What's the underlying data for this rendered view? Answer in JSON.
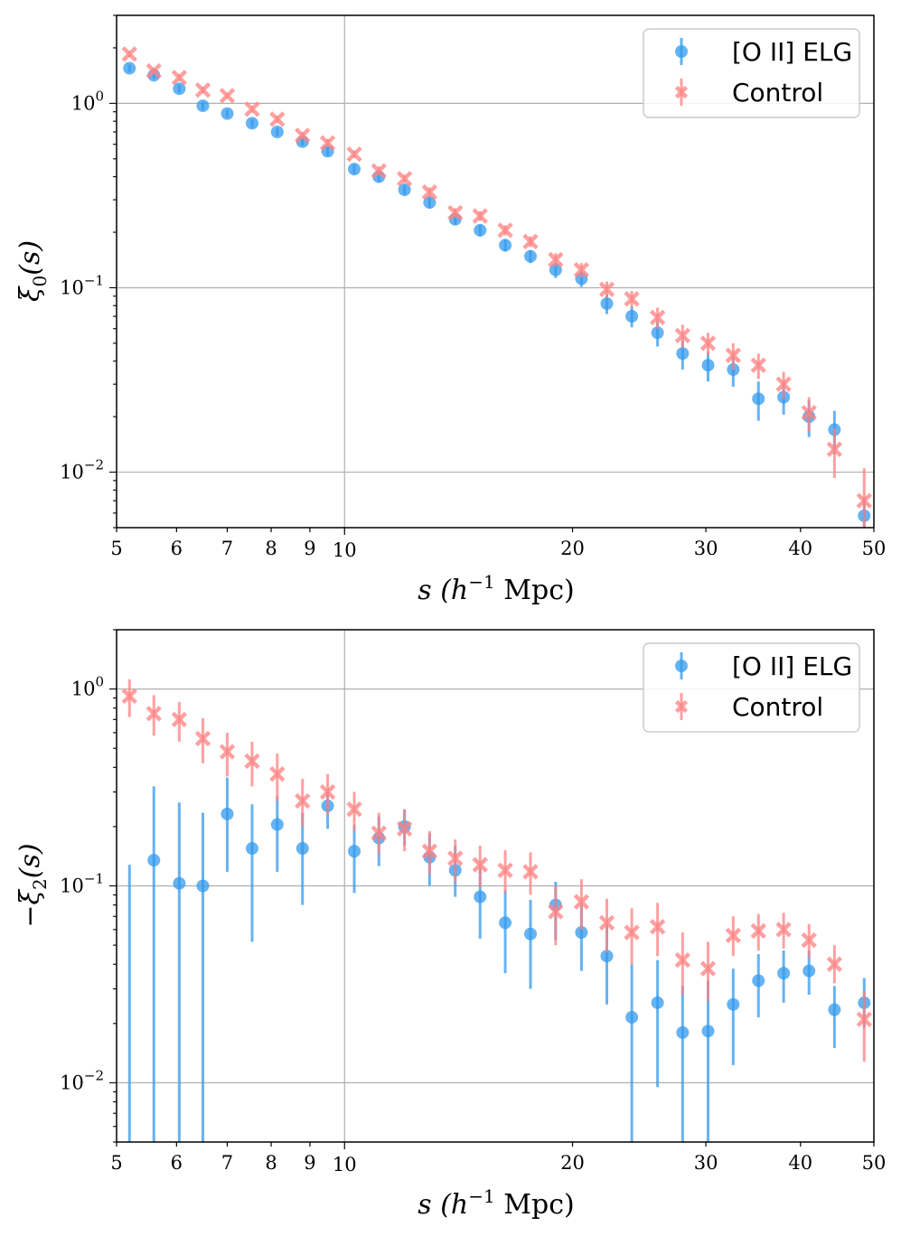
{
  "chart_data": [
    {
      "type": "scatter",
      "name": "xi0",
      "ylabel": "ξ0(s)",
      "xlabel": "s (h−1 Mpc)",
      "xscale": "log",
      "yscale": "log",
      "xlim": [
        5,
        50
      ],
      "ylim": [
        0.005,
        3.0
      ],
      "grid_major_x": [
        10
      ],
      "grid_major_y": [
        0.01,
        0.1,
        1.0
      ],
      "x_ticks": [
        5,
        6,
        7,
        8,
        9,
        10,
        20,
        30,
        40,
        50
      ],
      "x_tick_labels": [
        "5",
        "6",
        "7",
        "8",
        "9",
        "10",
        "20",
        "30",
        "40",
        "50"
      ],
      "y_ticks": [
        0.01,
        0.1,
        1.0
      ],
      "y_tick_labels": [
        {
          "base": "10",
          "exp": "−2"
        },
        {
          "base": "10",
          "exp": "−1"
        },
        {
          "base": "10",
          "exp": "0"
        }
      ],
      "legend": {
        "position": "top-right",
        "entries": [
          "[O II] ELG",
          "Control"
        ]
      },
      "series": [
        {
          "name": "[O II] ELG",
          "color": "#3399ee",
          "marker": "circle",
          "x": [
            5.2,
            5.6,
            6.05,
            6.5,
            7.0,
            7.55,
            8.15,
            8.8,
            9.5,
            10.3,
            11.1,
            12.0,
            12.95,
            14.0,
            15.1,
            16.3,
            17.6,
            19.0,
            20.55,
            22.2,
            23.95,
            25.9,
            27.95,
            30.2,
            32.6,
            35.2,
            38.0,
            41.05,
            44.35,
            48.55
          ],
          "y": [
            1.55,
            1.42,
            1.2,
            0.97,
            0.88,
            0.78,
            0.7,
            0.62,
            0.55,
            0.44,
            0.4,
            0.34,
            0.29,
            0.235,
            0.205,
            0.17,
            0.148,
            0.125,
            0.112,
            0.082,
            0.07,
            0.057,
            0.044,
            0.038,
            0.036,
            0.025,
            0.0255,
            0.02,
            0.017,
            0.0058
          ],
          "yerr_low": [
            0.07,
            0.06,
            0.06,
            0.05,
            0.04,
            0.04,
            0.035,
            0.03,
            0.03,
            0.025,
            0.025,
            0.02,
            0.02,
            0.015,
            0.015,
            0.013,
            0.012,
            0.012,
            0.011,
            0.01,
            0.009,
            0.009,
            0.008,
            0.007,
            0.007,
            0.006,
            0.005,
            0.0045,
            0.0045,
            0.0015
          ],
          "yerr_high": [
            0.07,
            0.06,
            0.06,
            0.05,
            0.04,
            0.04,
            0.035,
            0.03,
            0.03,
            0.025,
            0.025,
            0.02,
            0.02,
            0.015,
            0.015,
            0.013,
            0.012,
            0.012,
            0.011,
            0.01,
            0.009,
            0.009,
            0.008,
            0.007,
            0.007,
            0.006,
            0.005,
            0.0045,
            0.0045,
            0.0015
          ]
        },
        {
          "name": "Control",
          "color": "#ff8080",
          "marker": "x",
          "x": [
            5.2,
            5.6,
            6.05,
            6.5,
            7.0,
            7.55,
            8.15,
            8.8,
            9.5,
            10.3,
            11.1,
            12.0,
            12.95,
            14.0,
            15.1,
            16.3,
            17.6,
            19.0,
            20.55,
            22.2,
            23.95,
            25.9,
            27.95,
            30.2,
            32.6,
            35.2,
            38.0,
            41.05,
            44.35,
            48.55
          ],
          "y": [
            1.85,
            1.5,
            1.38,
            1.18,
            1.1,
            0.93,
            0.82,
            0.67,
            0.61,
            0.53,
            0.43,
            0.39,
            0.33,
            0.255,
            0.245,
            0.205,
            0.178,
            0.142,
            0.125,
            0.098,
            0.087,
            0.069,
            0.055,
            0.05,
            0.043,
            0.038,
            0.03,
            0.021,
            0.0133,
            0.007
          ],
          "yerr_low": [
            0.07,
            0.06,
            0.06,
            0.05,
            0.04,
            0.04,
            0.035,
            0.03,
            0.03,
            0.025,
            0.025,
            0.02,
            0.02,
            0.015,
            0.015,
            0.013,
            0.012,
            0.012,
            0.011,
            0.01,
            0.009,
            0.009,
            0.008,
            0.007,
            0.007,
            0.006,
            0.005,
            0.0045,
            0.004,
            0.0025
          ],
          "yerr_high": [
            0.07,
            0.06,
            0.06,
            0.05,
            0.04,
            0.04,
            0.035,
            0.03,
            0.03,
            0.025,
            0.025,
            0.02,
            0.02,
            0.015,
            0.015,
            0.013,
            0.012,
            0.012,
            0.011,
            0.01,
            0.009,
            0.009,
            0.008,
            0.007,
            0.007,
            0.006,
            0.005,
            0.0045,
            0.004,
            0.0035
          ]
        }
      ]
    },
    {
      "type": "scatter",
      "name": "xi2",
      "ylabel": "−ξ2(s)",
      "xlabel": "s (h−1 Mpc)",
      "xscale": "log",
      "yscale": "log",
      "xlim": [
        5,
        50
      ],
      "ylim": [
        0.005,
        2.0
      ],
      "grid_major_x": [
        10
      ],
      "grid_major_y": [
        0.01,
        0.1,
        1.0
      ],
      "x_ticks": [
        5,
        6,
        7,
        8,
        9,
        10,
        20,
        30,
        40,
        50
      ],
      "x_tick_labels": [
        "5",
        "6",
        "7",
        "8",
        "9",
        "10",
        "20",
        "30",
        "40",
        "50"
      ],
      "y_ticks": [
        0.01,
        0.1,
        1.0
      ],
      "y_tick_labels": [
        {
          "base": "10",
          "exp": "−2"
        },
        {
          "base": "10",
          "exp": "−1"
        },
        {
          "base": "10",
          "exp": "0"
        }
      ],
      "legend": {
        "position": "top-right",
        "entries": [
          "[O II] ELG",
          "Control"
        ]
      },
      "series": [
        {
          "name": "[O II] ELG",
          "color": "#3399ee",
          "marker": "circle",
          "x": [
            5.2,
            5.6,
            6.05,
            6.5,
            7.0,
            7.55,
            8.15,
            8.8,
            9.5,
            10.3,
            11.1,
            12.0,
            12.95,
            14.0,
            15.1,
            16.3,
            17.6,
            19.0,
            20.55,
            22.2,
            23.95,
            25.9,
            27.95,
            30.2,
            32.6,
            35.2,
            38.0,
            41.05,
            44.35,
            48.55
          ],
          "y": [
            null,
            0.135,
            0.103,
            0.1,
            0.232,
            0.155,
            0.205,
            0.155,
            0.255,
            0.15,
            0.175,
            0.2,
            0.14,
            0.12,
            0.088,
            0.065,
            0.057,
            0.08,
            0.058,
            0.044,
            0.0215,
            0.0255,
            0.018,
            0.0183,
            0.025,
            0.033,
            0.036,
            0.037,
            0.0235,
            0.0255
          ],
          "err_lo": [
            0.005,
            0.005,
            0.005,
            0.005,
            0.118,
            0.052,
            0.118,
            0.08,
            0.195,
            0.092,
            0.126,
            0.16,
            0.1,
            0.088,
            0.054,
            0.036,
            0.03,
            0.053,
            0.037,
            0.025,
            0.005,
            0.0095,
            0.005,
            0.005,
            0.0123,
            0.0215,
            0.0255,
            0.028,
            0.015,
            0.019
          ],
          "err_hi": [
            0.128,
            0.32,
            0.265,
            0.235,
            0.355,
            0.26,
            0.285,
            0.235,
            0.3,
            0.205,
            0.225,
            0.245,
            0.185,
            0.16,
            0.125,
            0.095,
            0.085,
            0.105,
            0.08,
            0.063,
            0.04,
            0.042,
            0.031,
            0.033,
            0.038,
            0.045,
            0.047,
            0.047,
            0.031,
            0.034
          ]
        },
        {
          "name": "Control",
          "color": "#ff8080",
          "marker": "x",
          "x": [
            5.2,
            5.6,
            6.05,
            6.5,
            7.0,
            7.55,
            8.15,
            8.8,
            9.5,
            10.3,
            11.1,
            12.0,
            12.95,
            14.0,
            15.1,
            16.3,
            17.6,
            19.0,
            20.55,
            22.2,
            23.95,
            25.9,
            27.95,
            30.2,
            32.6,
            35.2,
            38.0,
            41.05,
            44.35,
            48.55
          ],
          "y": [
            0.92,
            0.75,
            0.7,
            0.56,
            0.48,
            0.43,
            0.37,
            0.27,
            0.3,
            0.245,
            0.185,
            0.195,
            0.15,
            0.138,
            0.128,
            0.12,
            0.118,
            0.074,
            0.083,
            0.065,
            0.058,
            0.062,
            0.042,
            0.038,
            0.056,
            0.059,
            0.06,
            0.053,
            0.04,
            0.021
          ],
          "err_lo": [
            0.72,
            0.58,
            0.54,
            0.42,
            0.36,
            0.32,
            0.27,
            0.2,
            0.23,
            0.19,
            0.145,
            0.15,
            0.115,
            0.105,
            0.098,
            0.092,
            0.09,
            0.05,
            0.06,
            0.046,
            0.04,
            0.044,
            0.028,
            0.026,
            0.044,
            0.047,
            0.048,
            0.043,
            0.032,
            0.0128
          ],
          "err_hi": [
            1.12,
            0.93,
            0.86,
            0.71,
            0.6,
            0.54,
            0.47,
            0.35,
            0.37,
            0.3,
            0.235,
            0.245,
            0.19,
            0.172,
            0.16,
            0.152,
            0.148,
            0.1,
            0.108,
            0.086,
            0.077,
            0.082,
            0.058,
            0.052,
            0.07,
            0.072,
            0.073,
            0.064,
            0.05,
            0.029
          ]
        }
      ]
    }
  ]
}
